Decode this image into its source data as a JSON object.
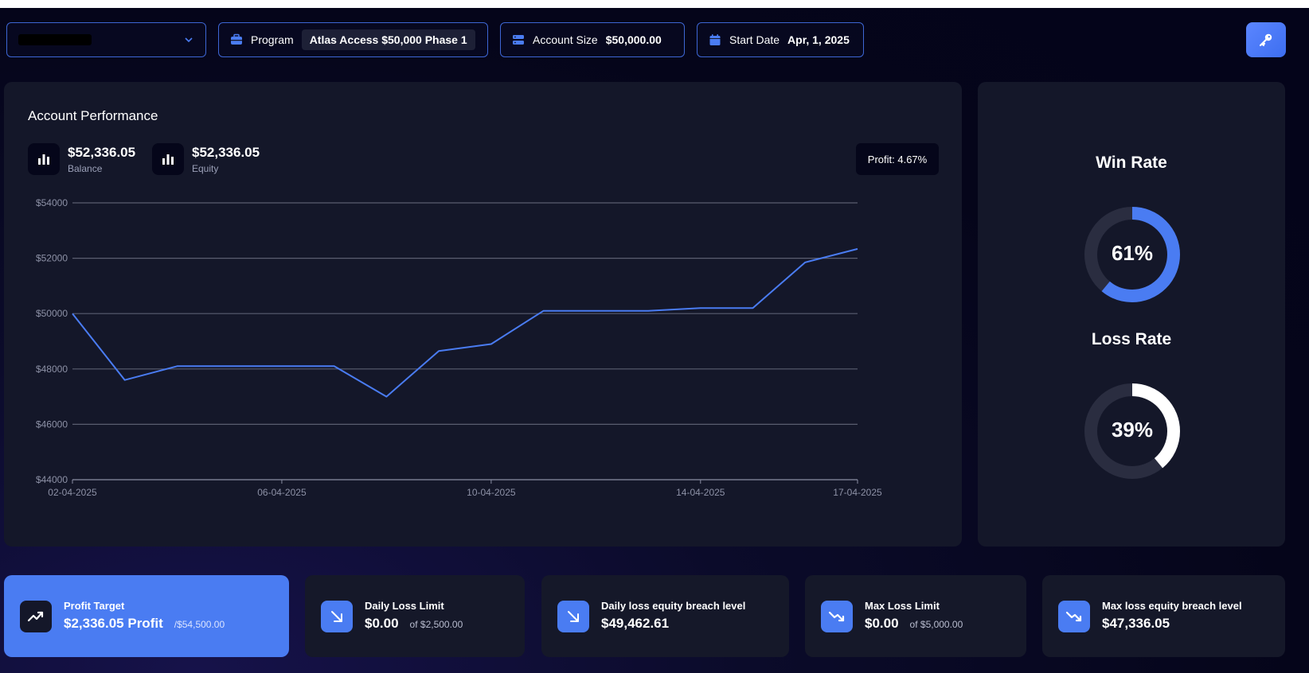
{
  "header": {
    "account_select": {
      "value": ""
    },
    "program": {
      "label": "Program",
      "value": "Atlas Access $50,000 Phase 1"
    },
    "account_size": {
      "label": "Account Size",
      "value": "$50,000.00"
    },
    "start_date": {
      "label": "Start Date",
      "value": "Apr, 1, 2025"
    }
  },
  "performance": {
    "title": "Account Performance",
    "balance": {
      "value": "$52,336.05",
      "label": "Balance"
    },
    "equity": {
      "value": "$52,336.05",
      "label": "Equity"
    },
    "profit_tooltip": "Profit: 4.67%"
  },
  "chart_data": {
    "type": "line",
    "ylim": [
      44000,
      54000
    ],
    "y_ticks": [
      "$54000",
      "$52000",
      "$50000",
      "$48000",
      "$46000",
      "$44000"
    ],
    "y_tick_values": [
      54000,
      52000,
      50000,
      48000,
      46000,
      44000
    ],
    "x_ticks": [
      "02-04-2025",
      "06-04-2025",
      "10-04-2025",
      "14-04-2025",
      "17-04-2025"
    ],
    "x_tick_days": [
      0,
      4,
      8,
      12,
      15
    ],
    "grid": true,
    "series": [
      {
        "color": "#4a7cf2",
        "x": [
          "02-04-2025",
          "03-04-2025",
          "04-04-2025",
          "05-04-2025",
          "06-04-2025",
          "07-04-2025",
          "08-04-2025",
          "09-04-2025",
          "10-04-2025",
          "11-04-2025",
          "12-04-2025",
          "13-04-2025",
          "14-04-2025",
          "15-04-2025",
          "16-04-2025",
          "17-04-2025"
        ],
        "values": [
          50000,
          47600,
          48100,
          48100,
          48100,
          48100,
          47000,
          48650,
          48900,
          50100,
          50100,
          50100,
          50200,
          50200,
          51850,
          52336
        ]
      }
    ]
  },
  "rates": {
    "win": {
      "title": "Win Rate",
      "value": "61%",
      "fraction": 0.61,
      "color": "#4a7cf2"
    },
    "loss": {
      "title": "Loss Rate",
      "value": "39%",
      "fraction": 0.39,
      "color": "#ffffff"
    }
  },
  "cards": {
    "profit_target": {
      "title": "Profit Target",
      "value": "$2,336.05 Profit",
      "sub": "/$54,500.00"
    },
    "daily_loss": {
      "title": "Daily Loss Limit",
      "value": "$0.00",
      "sub": "of $2,500.00"
    },
    "daily_breach": {
      "title": "Daily loss equity breach level",
      "value": "$49,462.61"
    },
    "max_loss": {
      "title": "Max Loss Limit",
      "value": "$0.00",
      "sub": "of $5,000.00"
    },
    "max_breach": {
      "title": "Max loss equity breach level",
      "value": "$47,336.05"
    }
  }
}
